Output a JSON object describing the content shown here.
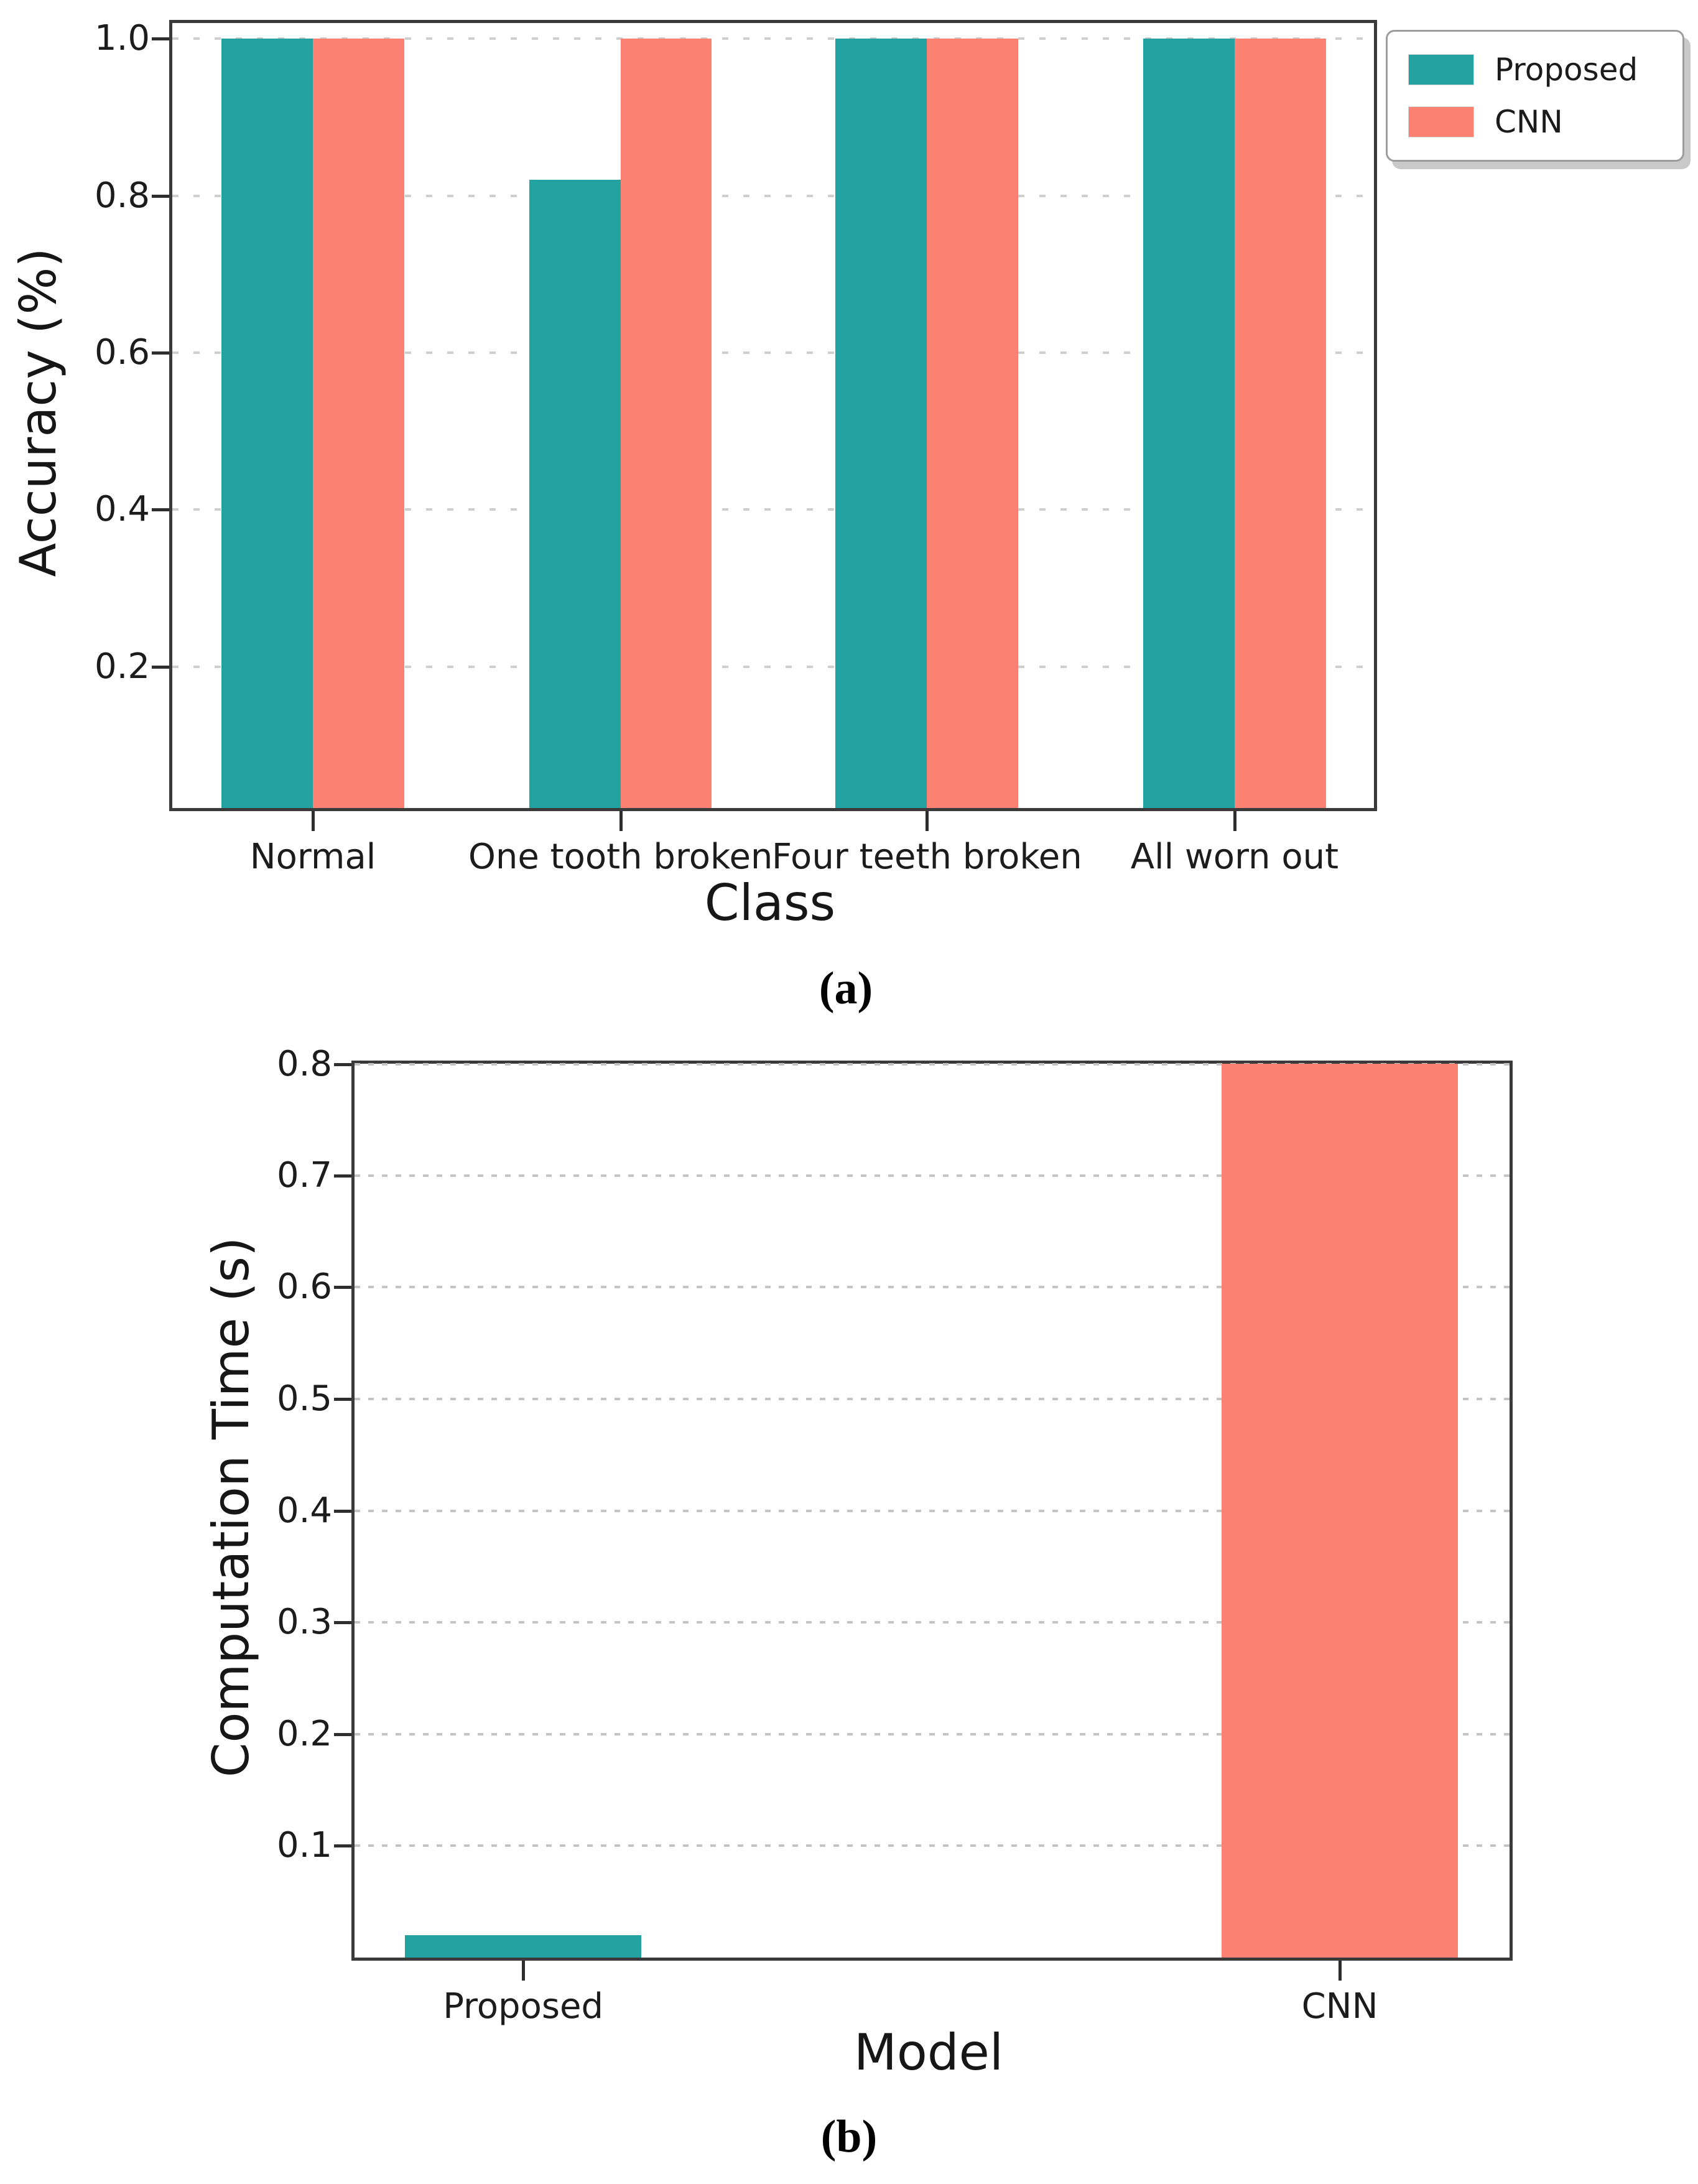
{
  "colors": {
    "proposed": "#23a2a2",
    "cnn": "#fb8173",
    "grid": "#c9c9c9",
    "spine": "#3a3a3a",
    "text": "#1c1c1c"
  },
  "chart_data": [
    {
      "id": "a",
      "type": "bar",
      "title": "",
      "xlabel": "Class",
      "ylabel": "Accuracy (%)",
      "caption": "(a)",
      "ylim": [
        0.02,
        1.02
      ],
      "grid": "dashed",
      "yticks": [
        {
          "v": 0.2,
          "label": "0.2"
        },
        {
          "v": 0.4,
          "label": "0.4"
        },
        {
          "v": 0.6,
          "label": "0.6"
        },
        {
          "v": 0.8,
          "label": "0.8"
        },
        {
          "v": 1.0,
          "label": "1.0"
        }
      ],
      "categories": [
        "Normal",
        "One tooth broken",
        "Four teeth broken",
        "All worn out"
      ],
      "category_centers_pct": [
        11.7,
        37.3,
        62.8,
        88.4
      ],
      "bar_width_pct": 7.6,
      "series": [
        {
          "name": "Proposed",
          "color": "proposed",
          "values": [
            1.0,
            0.82,
            1.0,
            1.0
          ]
        },
        {
          "name": "CNN",
          "color": "cnn",
          "values": [
            1.0,
            1.0,
            1.0,
            1.0
          ]
        }
      ],
      "legend": {
        "position": "outside-upper-right",
        "entries": [
          {
            "label": "Proposed",
            "color": "proposed"
          },
          {
            "label": "CNN",
            "color": "cnn"
          }
        ]
      }
    },
    {
      "id": "b",
      "type": "bar",
      "title": "",
      "xlabel": "Model",
      "ylabel": "Computation Time (s)",
      "caption": "(b)",
      "ylim": [
        0,
        0.8
      ],
      "grid": "dotted",
      "yticks": [
        {
          "v": 0.1,
          "label": "0.1"
        },
        {
          "v": 0.2,
          "label": "0.2"
        },
        {
          "v": 0.3,
          "label": "0.3"
        },
        {
          "v": 0.4,
          "label": "0.4"
        },
        {
          "v": 0.5,
          "label": "0.5"
        },
        {
          "v": 0.6,
          "label": "0.6"
        },
        {
          "v": 0.7,
          "label": "0.7"
        },
        {
          "v": 0.8,
          "label": "0.8"
        }
      ],
      "categories": [
        "Proposed",
        "CNN"
      ],
      "category_centers_pct": [
        14.6,
        85.3
      ],
      "bar_width_pct": 20.5,
      "bars": [
        {
          "category": "Proposed",
          "value": 0.02,
          "color": "proposed"
        },
        {
          "category": "CNN",
          "value": 0.8,
          "color": "cnn"
        }
      ]
    }
  ]
}
